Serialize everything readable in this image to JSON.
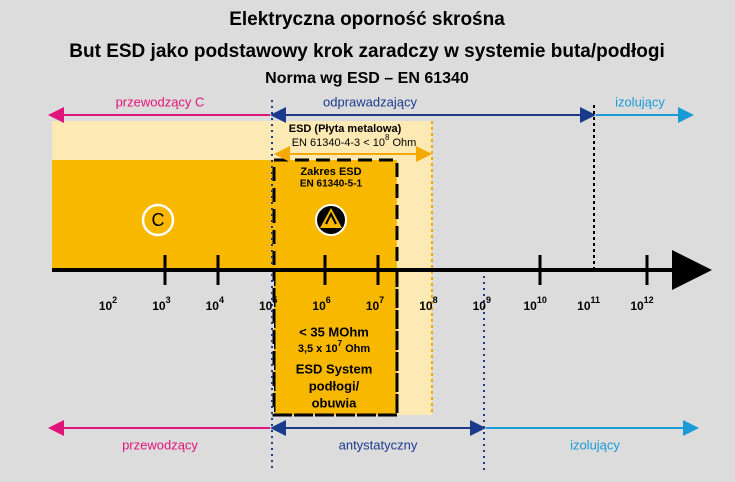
{
  "header": {
    "title": "Elektryczna oporność skrośna",
    "subtitle": "But ESD jako podstawowy krok zaradczy w systemie buta/podłogi",
    "norm": "Norma wg ESD – EN 61340"
  },
  "top_ranges": [
    "przewodzący C",
    "odprawadzający",
    "izolujący"
  ],
  "esd_plate": {
    "title": "ESD (Płyta metalowa)",
    "limit": {
      "base": "EN 61340-4-3 < 10",
      "sup": "8",
      "tail": " Ohm"
    }
  },
  "esd_range": {
    "title": "Zakres ESD",
    "norm": "EN 61340-5-1"
  },
  "c_symbol": "C",
  "axis": {
    "labels": [
      {
        "base": "10",
        "exp": "2"
      },
      {
        "base": "10",
        "exp": "3"
      },
      {
        "base": "10",
        "exp": "4"
      },
      {
        "base": "10",
        "exp": "5"
      },
      {
        "base": "10",
        "exp": "6"
      },
      {
        "base": "10",
        "exp": "7"
      },
      {
        "base": "10",
        "exp": "8"
      },
      {
        "base": "10",
        "exp": "9"
      },
      {
        "base": "10",
        "exp": "10"
      },
      {
        "base": "10",
        "exp": "11"
      },
      {
        "base": "10",
        "exp": "12"
      }
    ]
  },
  "system": {
    "limit": "< 35 MOhm",
    "value": {
      "base": "3,5 x 10",
      "sup": "7",
      "tail": " Ohm"
    },
    "lines": [
      "ESD System",
      "podłogi/",
      "obuwia"
    ]
  },
  "bottom_ranges": [
    "przewodzący",
    "antystatyczny",
    "izolujący"
  ]
}
